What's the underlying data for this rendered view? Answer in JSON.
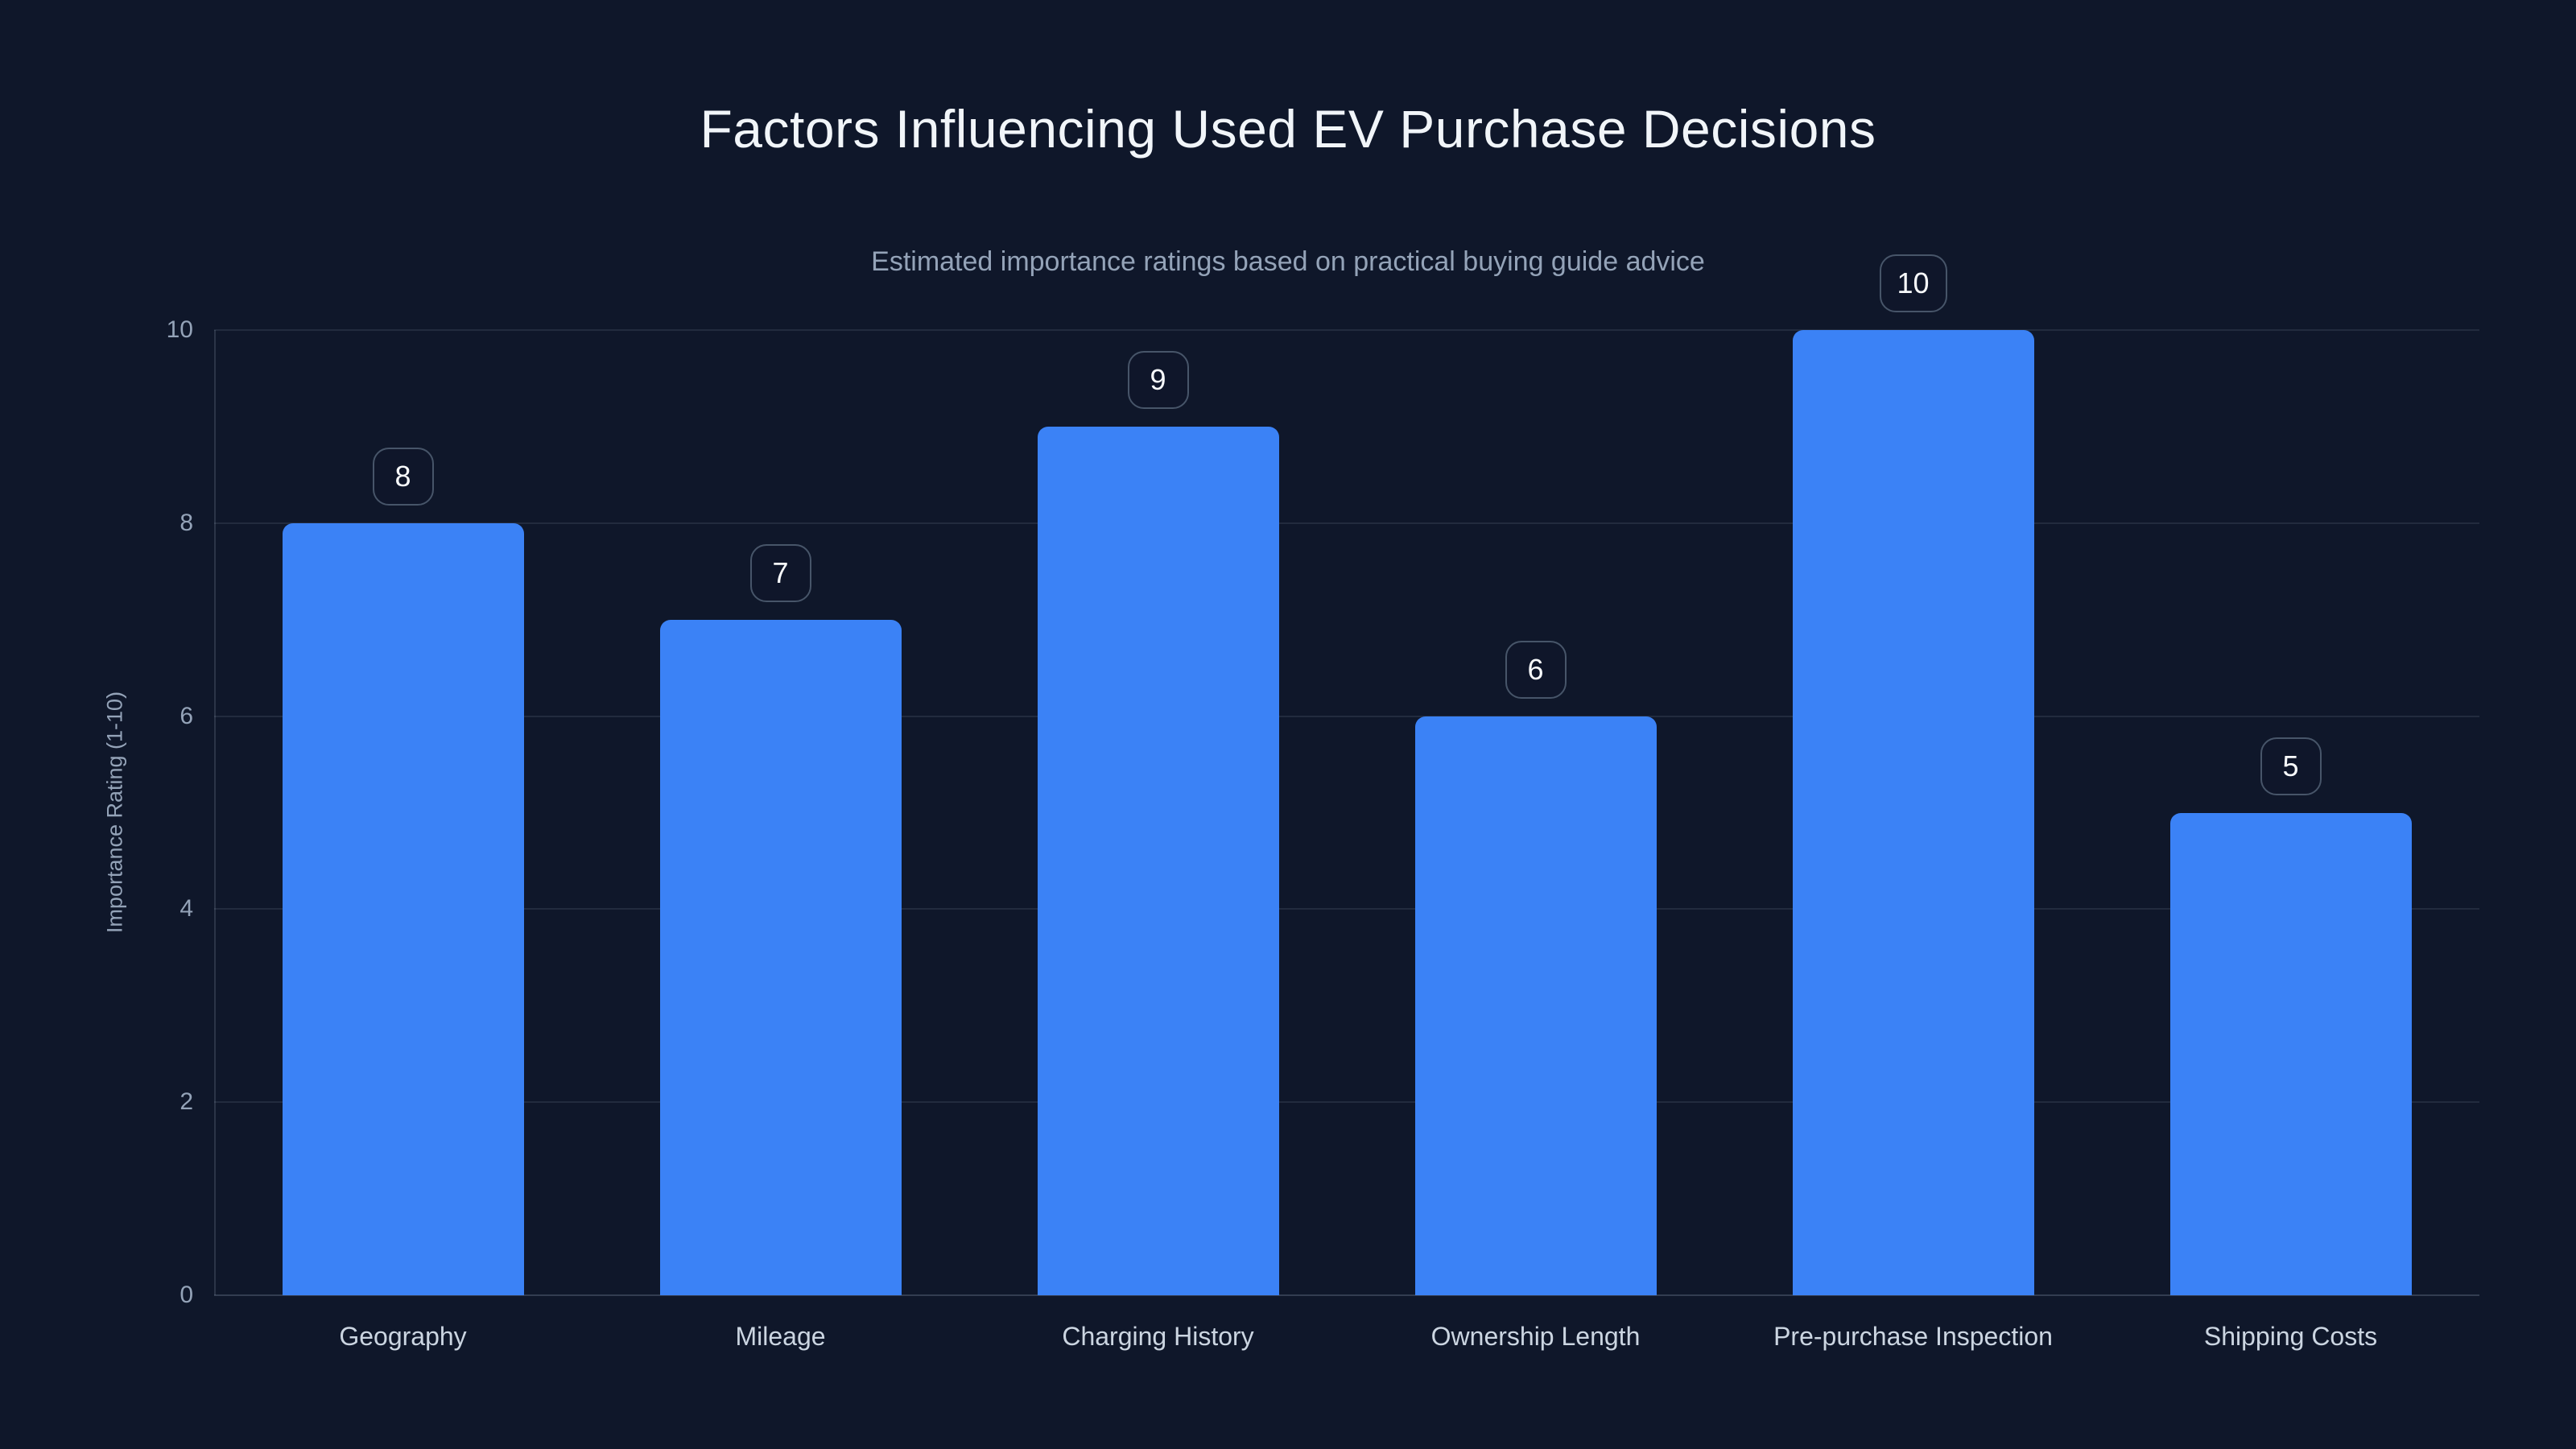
{
  "page": {
    "background_color": "#0f172a"
  },
  "chart_data": {
    "type": "bar",
    "title": "Factors Influencing Used EV Purchase Decisions",
    "subtitle": "Estimated importance ratings based on practical buying guide advice",
    "categories": [
      "Geography",
      "Mileage",
      "Charging History",
      "Ownership Length",
      "Pre-purchase Inspection",
      "Shipping Costs"
    ],
    "values": [
      8,
      7,
      9,
      6,
      10,
      5
    ],
    "xlabel": "",
    "ylabel": "Importance Rating (1-10)",
    "ylim": [
      0,
      10
    ],
    "yticks": [
      0,
      2,
      4,
      6,
      8,
      10
    ],
    "grid": true,
    "legend": false,
    "value_labels_shown": true,
    "colors": {
      "bar_fill": "#3b82f6",
      "background": "#0f172a",
      "title_text": "#f1f5f9",
      "subtitle_text": "#94a3b8",
      "tick_text": "#94a3b8",
      "category_text": "#cbd5e1",
      "badge_border": "#475569",
      "badge_text": "#f8fafc",
      "gridline": "#2a3650"
    }
  }
}
